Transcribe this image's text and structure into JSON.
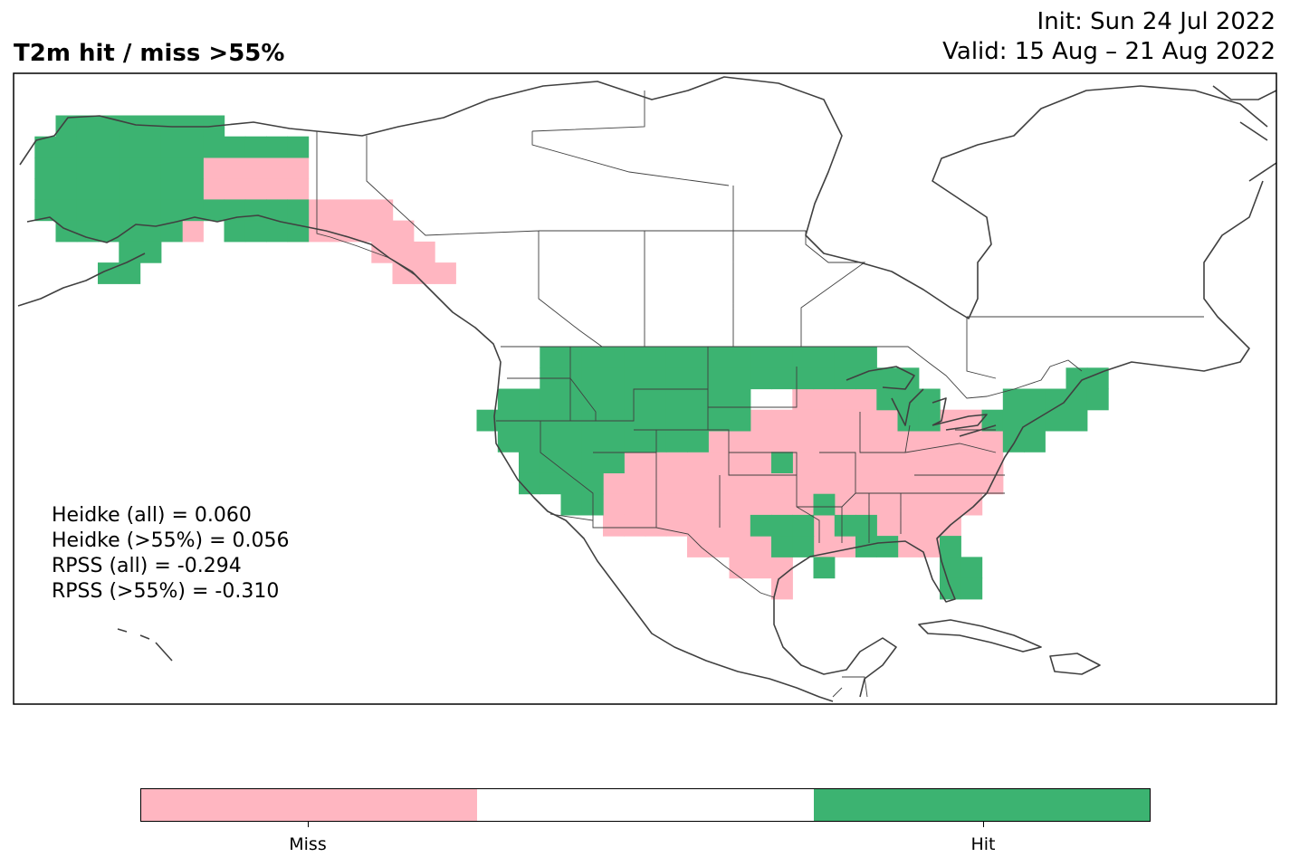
{
  "title": "T2m hit / miss  >55%",
  "init_label": "Init: Sun 24 Jul 2022",
  "valid_label": "Valid: 15 Aug – 21 Aug 2022",
  "scores": {
    "heidke_all": "Heidke (all) = 0.060",
    "heidke_55": "Heidke (>55%) = 0.056",
    "rpss_all": "RPSS (all) = -0.294",
    "rpss_55": "RPSS (>55%) = -0.310"
  },
  "colors": {
    "miss": "#ffb6c1",
    "neutral": "#ffffff",
    "hit": "#3cb371",
    "coast": "#404040"
  },
  "colorbar": {
    "labels": [
      "Miss",
      "Hit"
    ]
  },
  "map_data": {
    "projection": "PlateCarree",
    "extent": {
      "lon": [
        -170,
        -50
      ],
      "lat": [
        15,
        75
      ]
    },
    "grid_step_deg": 2,
    "hit_cells": [
      [
        -165,
        70
      ],
      [
        -163,
        70
      ],
      [
        -161,
        70
      ],
      [
        -159,
        70
      ],
      [
        -157,
        70
      ],
      [
        -155,
        70
      ],
      [
        -153,
        70
      ],
      [
        -151,
        70
      ],
      [
        -167,
        68
      ],
      [
        -165,
        68
      ],
      [
        -163,
        68
      ],
      [
        -161,
        68
      ],
      [
        -159,
        68
      ],
      [
        -157,
        68
      ],
      [
        -155,
        68
      ],
      [
        -153,
        68
      ],
      [
        -151,
        68
      ],
      [
        -149,
        68
      ],
      [
        -147,
        68
      ],
      [
        -145,
        68
      ],
      [
        -143,
        68
      ],
      [
        -167,
        66
      ],
      [
        -165,
        66
      ],
      [
        -163,
        66
      ],
      [
        -161,
        66
      ],
      [
        -159,
        66
      ],
      [
        -157,
        66
      ],
      [
        -155,
        66
      ],
      [
        -153,
        66
      ],
      [
        -167,
        64
      ],
      [
        -165,
        64
      ],
      [
        -163,
        64
      ],
      [
        -161,
        64
      ],
      [
        -159,
        64
      ],
      [
        -157,
        64
      ],
      [
        -155,
        64
      ],
      [
        -153,
        64
      ],
      [
        -167,
        62
      ],
      [
        -165,
        62
      ],
      [
        -163,
        62
      ],
      [
        -161,
        62
      ],
      [
        -159,
        62
      ],
      [
        -157,
        62
      ],
      [
        -155,
        62
      ],
      [
        -153,
        62
      ],
      [
        -151,
        62
      ],
      [
        -149,
        62
      ],
      [
        -147,
        62
      ],
      [
        -145,
        62
      ],
      [
        -143,
        62
      ],
      [
        -165,
        60
      ],
      [
        -163,
        60
      ],
      [
        -161,
        60
      ],
      [
        -159,
        60
      ],
      [
        -157,
        60
      ],
      [
        -155,
        60
      ],
      [
        -149,
        60
      ],
      [
        -147,
        60
      ],
      [
        -145,
        60
      ],
      [
        -143,
        60
      ],
      [
        -159,
        58
      ],
      [
        -157,
        58
      ],
      [
        -161,
        56
      ],
      [
        -159,
        56
      ],
      [
        -119,
        48
      ],
      [
        -117,
        48
      ],
      [
        -115,
        48
      ],
      [
        -113,
        48
      ],
      [
        -111,
        48
      ],
      [
        -109,
        48
      ],
      [
        -107,
        48
      ],
      [
        -105,
        48
      ],
      [
        -103,
        48
      ],
      [
        -101,
        48
      ],
      [
        -99,
        48
      ],
      [
        -97,
        48
      ],
      [
        -95,
        48
      ],
      [
        -93,
        48
      ],
      [
        -91,
        48
      ],
      [
        -89,
        48
      ],
      [
        -119,
        46
      ],
      [
        -117,
        46
      ],
      [
        -115,
        46
      ],
      [
        -113,
        46
      ],
      [
        -111,
        46
      ],
      [
        -109,
        46
      ],
      [
        -107,
        46
      ],
      [
        -105,
        46
      ],
      [
        -103,
        46
      ],
      [
        -101,
        46
      ],
      [
        -99,
        46
      ],
      [
        -97,
        46
      ],
      [
        -95,
        46
      ],
      [
        -93,
        46
      ],
      [
        -91,
        46
      ],
      [
        -89,
        46
      ],
      [
        -87,
        46
      ],
      [
        -85,
        46
      ],
      [
        -69,
        46
      ],
      [
        -67,
        46
      ],
      [
        -123,
        44
      ],
      [
        -121,
        44
      ],
      [
        -119,
        44
      ],
      [
        -117,
        44
      ],
      [
        -115,
        44
      ],
      [
        -113,
        44
      ],
      [
        -111,
        44
      ],
      [
        -109,
        44
      ],
      [
        -107,
        44
      ],
      [
        -105,
        44
      ],
      [
        -103,
        44
      ],
      [
        -101,
        44
      ],
      [
        -87,
        44
      ],
      [
        -85,
        44
      ],
      [
        -83,
        44
      ],
      [
        -75,
        44
      ],
      [
        -73,
        44
      ],
      [
        -71,
        44
      ],
      [
        -69,
        44
      ],
      [
        -67,
        44
      ],
      [
        -125,
        42
      ],
      [
        -123,
        42
      ],
      [
        -121,
        42
      ],
      [
        -119,
        42
      ],
      [
        -117,
        42
      ],
      [
        -115,
        42
      ],
      [
        -113,
        42
      ],
      [
        -111,
        42
      ],
      [
        -109,
        42
      ],
      [
        -107,
        42
      ],
      [
        -105,
        42
      ],
      [
        -103,
        42
      ],
      [
        -101,
        42
      ],
      [
        -85,
        42
      ],
      [
        -83,
        42
      ],
      [
        -77,
        42
      ],
      [
        -75,
        42
      ],
      [
        -73,
        42
      ],
      [
        -71,
        42
      ],
      [
        -69,
        42
      ],
      [
        -123,
        40
      ],
      [
        -121,
        40
      ],
      [
        -119,
        40
      ],
      [
        -117,
        40
      ],
      [
        -115,
        40
      ],
      [
        -113,
        40
      ],
      [
        -111,
        40
      ],
      [
        -109,
        40
      ],
      [
        -107,
        40
      ],
      [
        -105,
        40
      ],
      [
        -75,
        40
      ],
      [
        -73,
        40
      ],
      [
        -121,
        38
      ],
      [
        -119,
        38
      ],
      [
        -117,
        38
      ],
      [
        -115,
        38
      ],
      [
        -113,
        38
      ],
      [
        -97,
        38
      ],
      [
        -121,
        36
      ],
      [
        -119,
        36
      ],
      [
        -117,
        36
      ],
      [
        -115,
        36
      ],
      [
        -117,
        34
      ],
      [
        -115,
        34
      ],
      [
        -93,
        34
      ],
      [
        -99,
        32
      ],
      [
        -97,
        32
      ],
      [
        -95,
        32
      ],
      [
        -91,
        32
      ],
      [
        -89,
        32
      ],
      [
        -97,
        30
      ],
      [
        -95,
        30
      ],
      [
        -89,
        30
      ],
      [
        -87,
        30
      ],
      [
        -81,
        30
      ],
      [
        -93,
        28
      ],
      [
        -81,
        28
      ],
      [
        -79,
        28
      ],
      [
        -81,
        26
      ],
      [
        -79,
        26
      ]
    ],
    "miss_cells": [
      [
        -151,
        66
      ],
      [
        -149,
        66
      ],
      [
        -147,
        66
      ],
      [
        -145,
        66
      ],
      [
        -143,
        66
      ],
      [
        -151,
        64
      ],
      [
        -149,
        64
      ],
      [
        -147,
        64
      ],
      [
        -145,
        64
      ],
      [
        -143,
        64
      ],
      [
        -151,
        62
      ],
      [
        -141,
        62
      ],
      [
        -153,
        60
      ],
      [
        -143,
        60
      ],
      [
        -141,
        60
      ],
      [
        -139,
        62
      ],
      [
        -137,
        62
      ],
      [
        -135,
        62
      ],
      [
        -139,
        60
      ],
      [
        -137,
        60
      ],
      [
        -135,
        60
      ],
      [
        -133,
        60
      ],
      [
        -135,
        58
      ],
      [
        -133,
        58
      ],
      [
        -131,
        58
      ],
      [
        -133,
        56
      ],
      [
        -131,
        56
      ],
      [
        -129,
        56
      ],
      [
        -95,
        44
      ],
      [
        -93,
        44
      ],
      [
        -91,
        44
      ],
      [
        -89,
        44
      ],
      [
        -99,
        42
      ],
      [
        -97,
        42
      ],
      [
        -95,
        42
      ],
      [
        -93,
        42
      ],
      [
        -91,
        42
      ],
      [
        -89,
        42
      ],
      [
        -87,
        42
      ],
      [
        -81,
        42
      ],
      [
        -79,
        42
      ],
      [
        -103,
        40
      ],
      [
        -101,
        40
      ],
      [
        -99,
        40
      ],
      [
        -97,
        40
      ],
      [
        -95,
        40
      ],
      [
        -93,
        40
      ],
      [
        -91,
        40
      ],
      [
        -89,
        40
      ],
      [
        -87,
        40
      ],
      [
        -85,
        40
      ],
      [
        -83,
        40
      ],
      [
        -81,
        40
      ],
      [
        -79,
        40
      ],
      [
        -77,
        40
      ],
      [
        -111,
        38
      ],
      [
        -109,
        38
      ],
      [
        -107,
        38
      ],
      [
        -105,
        38
      ],
      [
        -103,
        38
      ],
      [
        -101,
        38
      ],
      [
        -99,
        38
      ],
      [
        -95,
        38
      ],
      [
        -93,
        38
      ],
      [
        -91,
        38
      ],
      [
        -89,
        38
      ],
      [
        -87,
        38
      ],
      [
        -85,
        38
      ],
      [
        -83,
        38
      ],
      [
        -81,
        38
      ],
      [
        -79,
        38
      ],
      [
        -77,
        38
      ],
      [
        -113,
        36
      ],
      [
        -111,
        36
      ],
      [
        -109,
        36
      ],
      [
        -107,
        36
      ],
      [
        -105,
        36
      ],
      [
        -103,
        36
      ],
      [
        -101,
        36
      ],
      [
        -99,
        36
      ],
      [
        -97,
        36
      ],
      [
        -95,
        36
      ],
      [
        -93,
        36
      ],
      [
        -91,
        36
      ],
      [
        -89,
        36
      ],
      [
        -87,
        36
      ],
      [
        -85,
        36
      ],
      [
        -83,
        36
      ],
      [
        -81,
        36
      ],
      [
        -79,
        36
      ],
      [
        -77,
        36
      ],
      [
        -113,
        34
      ],
      [
        -111,
        34
      ],
      [
        -109,
        34
      ],
      [
        -107,
        34
      ],
      [
        -105,
        34
      ],
      [
        -103,
        34
      ],
      [
        -101,
        34
      ],
      [
        -99,
        34
      ],
      [
        -97,
        34
      ],
      [
        -95,
        34
      ],
      [
        -91,
        34
      ],
      [
        -89,
        34
      ],
      [
        -87,
        34
      ],
      [
        -85,
        34
      ],
      [
        -83,
        34
      ],
      [
        -81,
        34
      ],
      [
        -79,
        34
      ],
      [
        -113,
        32
      ],
      [
        -111,
        32
      ],
      [
        -109,
        32
      ],
      [
        -107,
        32
      ],
      [
        -105,
        32
      ],
      [
        -103,
        32
      ],
      [
        -101,
        32
      ],
      [
        -93,
        32
      ],
      [
        -87,
        32
      ],
      [
        -85,
        32
      ],
      [
        -83,
        32
      ],
      [
        -81,
        32
      ],
      [
        -105,
        30
      ],
      [
        -103,
        30
      ],
      [
        -101,
        30
      ],
      [
        -99,
        30
      ],
      [
        -93,
        30
      ],
      [
        -91,
        30
      ],
      [
        -85,
        30
      ],
      [
        -83,
        30
      ],
      [
        -101,
        28
      ],
      [
        -99,
        28
      ],
      [
        -97,
        28
      ],
      [
        -97,
        26
      ]
    ]
  }
}
